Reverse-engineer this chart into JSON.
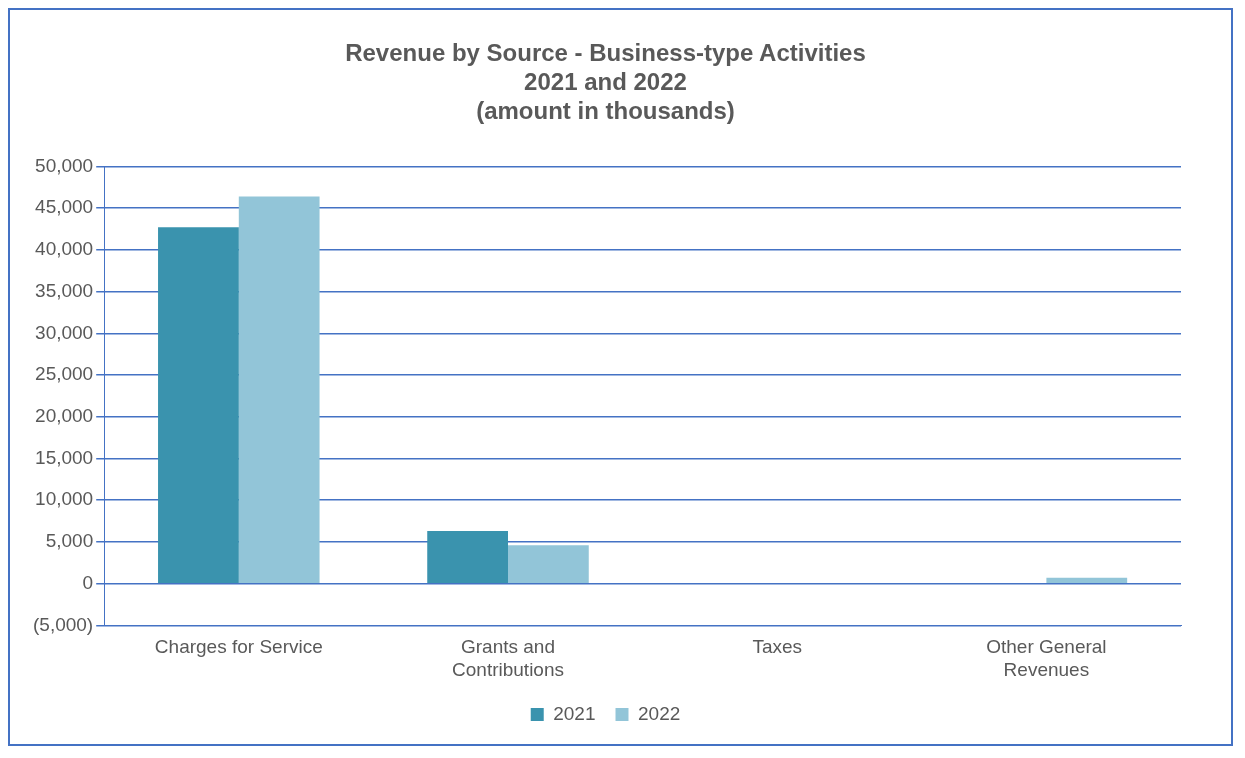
{
  "chart_data": {
    "type": "bar",
    "title": "Revenue by Source - Business-type Activities\n2021 and 2022",
    "subtitle": "(amount in thousands)",
    "categories": [
      "Charges for Service",
      "Grants and Contributions",
      "Taxes",
      "Other General Revenues"
    ],
    "series": [
      {
        "name": "2021",
        "color": "#3a93ae",
        "values": [
          42700,
          6300,
          0,
          0
        ]
      },
      {
        "name": "2022",
        "color": "#92c5d8",
        "values": [
          46400,
          4600,
          0,
          700
        ]
      }
    ],
    "ylim": [
      -5000,
      50000
    ],
    "yticks": [
      {
        "value": -5000,
        "label": "(5,000)"
      },
      {
        "value": 0,
        "label": "0"
      },
      {
        "value": 5000,
        "label": "5,000"
      },
      {
        "value": 10000,
        "label": "10,000"
      },
      {
        "value": 15000,
        "label": "15,000"
      },
      {
        "value": 20000,
        "label": "20,000"
      },
      {
        "value": 25000,
        "label": "25,000"
      },
      {
        "value": 30000,
        "label": "30,000"
      },
      {
        "value": 35000,
        "label": "35,000"
      },
      {
        "value": 40000,
        "label": "40,000"
      },
      {
        "value": 45000,
        "label": "45,000"
      },
      {
        "value": 50000,
        "label": "50,000"
      }
    ],
    "grid": "y",
    "legend": "bottom"
  }
}
